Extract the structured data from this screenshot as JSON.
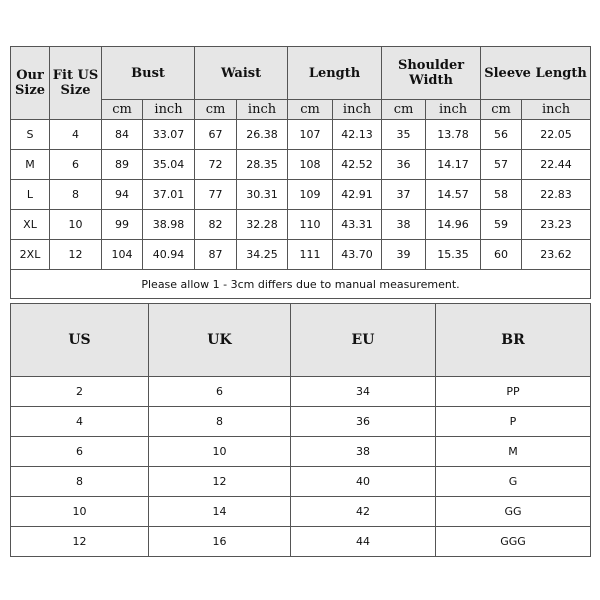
{
  "measure_table": {
    "headers": {
      "our_size": "Our Size",
      "fit_us_size": "Fit US Size",
      "bust": "Bust",
      "waist": "Waist",
      "length": "Length",
      "shoulder_width": "Shoulder Width",
      "sleeve_length": "Sleeve Length"
    },
    "units": [
      "cm",
      "inch",
      "cm",
      "inch",
      "cm",
      "inch",
      "cm",
      "inch",
      "cm",
      "inch"
    ],
    "rows": [
      [
        "S",
        "4",
        "84",
        "33.07",
        "67",
        "26.38",
        "107",
        "42.13",
        "35",
        "13.78",
        "56",
        "22.05"
      ],
      [
        "M",
        "6",
        "89",
        "35.04",
        "72",
        "28.35",
        "108",
        "42.52",
        "36",
        "14.17",
        "57",
        "22.44"
      ],
      [
        "L",
        "8",
        "94",
        "37.01",
        "77",
        "30.31",
        "109",
        "42.91",
        "37",
        "14.57",
        "58",
        "22.83"
      ],
      [
        "XL",
        "10",
        "99",
        "38.98",
        "82",
        "32.28",
        "110",
        "43.31",
        "38",
        "14.96",
        "59",
        "23.23"
      ],
      [
        "2XL",
        "12",
        "104",
        "40.94",
        "87",
        "34.25",
        "111",
        "43.70",
        "39",
        "15.35",
        "60",
        "23.62"
      ]
    ],
    "note": "Please allow 1 - 3cm differs due to manual measurement."
  },
  "conversion_table": {
    "headers": [
      "US",
      "UK",
      "EU",
      "BR"
    ],
    "rows": [
      [
        "2",
        "6",
        "34",
        "PP"
      ],
      [
        "4",
        "8",
        "36",
        "P"
      ],
      [
        "6",
        "10",
        "38",
        "M"
      ],
      [
        "8",
        "12",
        "40",
        "G"
      ],
      [
        "10",
        "14",
        "42",
        "GG"
      ],
      [
        "12",
        "16",
        "44",
        "GGG"
      ]
    ]
  },
  "colors": {
    "header_bg": "#e6e6e6",
    "border": "#555555"
  }
}
